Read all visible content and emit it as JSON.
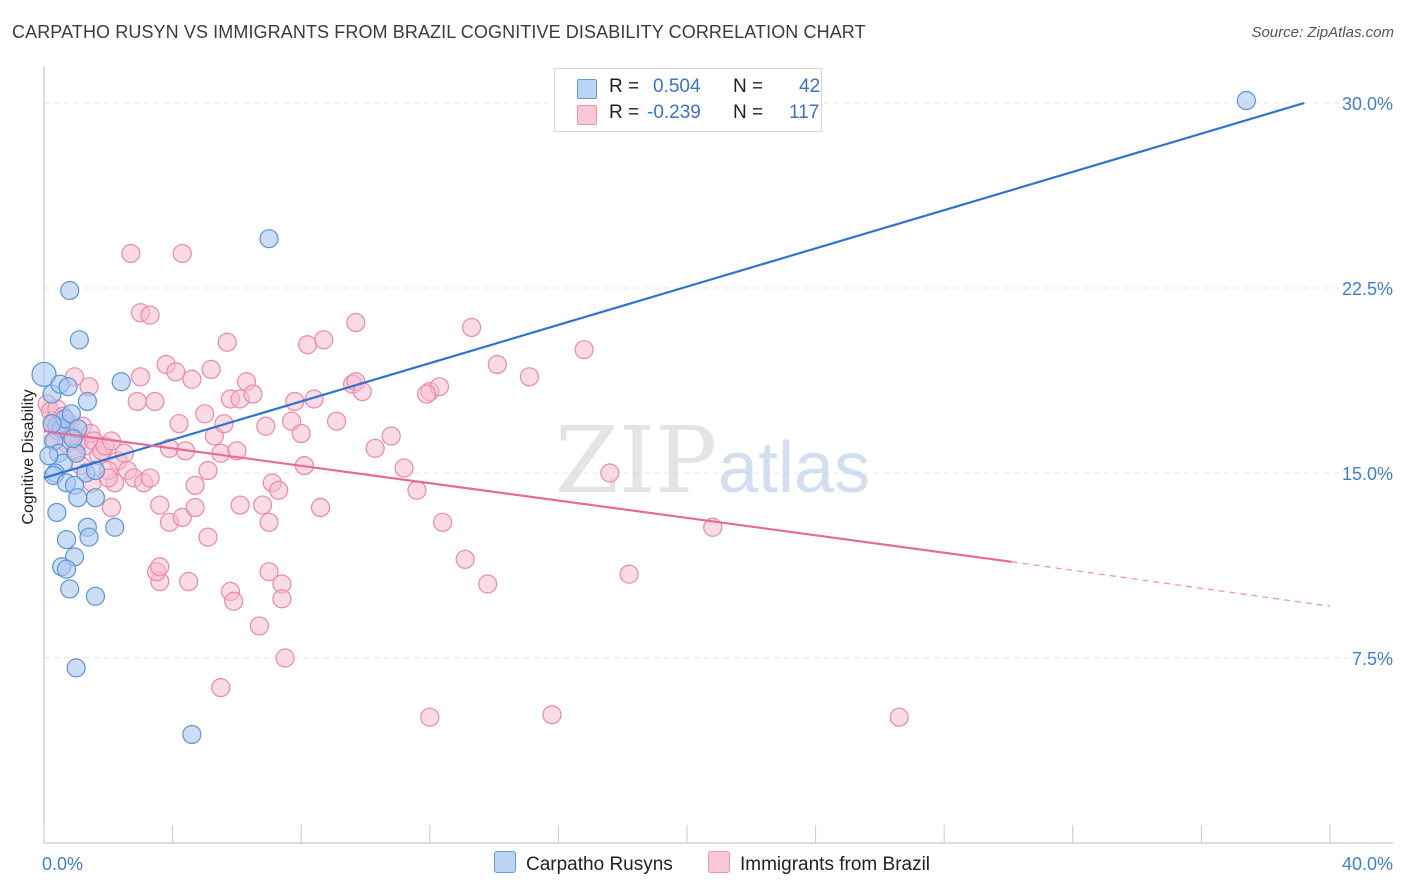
{
  "title": "CARPATHO RUSYN VS IMMIGRANTS FROM BRAZIL COGNITIVE DISABILITY CORRELATION CHART",
  "source": "Source: ZipAtlas.com",
  "watermark": {
    "zip": "ZIP",
    "atlas": "atlas"
  },
  "legend": {
    "r_label": "R =",
    "n_label": "N =",
    "rows": [
      {
        "r": "0.504",
        "n": "42"
      },
      {
        "r": "-0.239",
        "n": "117"
      }
    ]
  },
  "colors": {
    "blue_fill": "#a9c8f0",
    "blue_stroke": "#5e93d8",
    "blue_line": "#2f74d0",
    "pink_fill": "#f6bccd",
    "pink_stroke": "#e98aa7",
    "pink_line": "#e76b95",
    "tick_label": "#3f7fd0",
    "grid": "#e4e4e4"
  },
  "chart_data": {
    "type": "scatter",
    "title": "CARPATHO RUSYN VS IMMIGRANTS FROM BRAZIL COGNITIVE DISABILITY CORRELATION CHART",
    "xlabel": "",
    "ylabel": "Cognitive Disability",
    "xlim": [
      0,
      40
    ],
    "ylim": [
      0,
      31.5
    ],
    "x_tick_labels": [
      "0.0%",
      "40.0%"
    ],
    "y_ticks": [
      7.5,
      15.0,
      22.5,
      30.0
    ],
    "y_tick_labels": [
      "7.5%",
      "15.0%",
      "22.5%",
      "30.0%"
    ],
    "grid": "horizontal dashed",
    "legend_position": "top-center",
    "series": [
      {
        "name": "Carpatho Rusyns",
        "r": 0.504,
        "n": 42,
        "trend": {
          "x": [
            0.0,
            39.2
          ],
          "y": [
            14.8,
            30.0
          ]
        },
        "points": [
          [
            0.0,
            19.0
          ],
          [
            0.25,
            18.2
          ],
          [
            0.4,
            16.9
          ],
          [
            0.55,
            16.8
          ],
          [
            0.3,
            16.3
          ],
          [
            0.45,
            15.8
          ],
          [
            0.6,
            15.4
          ],
          [
            0.35,
            15.0
          ],
          [
            0.3,
            14.9
          ],
          [
            0.7,
            14.6
          ],
          [
            1.0,
            15.8
          ],
          [
            1.3,
            15.0
          ],
          [
            1.6,
            15.1
          ],
          [
            0.5,
            18.6
          ],
          [
            0.65,
            17.2
          ],
          [
            0.85,
            17.4
          ],
          [
            1.05,
            16.8
          ],
          [
            0.25,
            17.0
          ],
          [
            0.75,
            18.5
          ],
          [
            2.4,
            18.7
          ],
          [
            1.1,
            20.4
          ],
          [
            0.8,
            22.4
          ],
          [
            0.95,
            14.5
          ],
          [
            1.6,
            14.0
          ],
          [
            1.05,
            14.0
          ],
          [
            0.4,
            13.4
          ],
          [
            1.35,
            12.8
          ],
          [
            2.2,
            12.8
          ],
          [
            0.7,
            12.3
          ],
          [
            1.4,
            12.4
          ],
          [
            0.95,
            11.6
          ],
          [
            0.55,
            11.2
          ],
          [
            0.7,
            11.1
          ],
          [
            0.8,
            10.3
          ],
          [
            1.6,
            10.0
          ],
          [
            1.0,
            7.1
          ],
          [
            4.6,
            4.4
          ],
          [
            7.0,
            24.5
          ],
          [
            37.4,
            30.1
          ],
          [
            0.15,
            15.7
          ],
          [
            1.35,
            17.9
          ],
          [
            0.9,
            16.4
          ]
        ]
      },
      {
        "name": "Immigrants from Brazil",
        "r": -0.239,
        "n": 117,
        "trend": {
          "x": [
            0.0,
            30.1
          ],
          "y": [
            16.7,
            11.4
          ]
        },
        "trend_dashed": {
          "x": [
            30.1,
            40.0
          ],
          "y": [
            11.4,
            9.6
          ]
        },
        "points": [
          [
            0.1,
            17.8
          ],
          [
            0.2,
            17.5
          ],
          [
            0.3,
            17.1
          ],
          [
            0.4,
            17.6
          ],
          [
            0.5,
            16.9
          ],
          [
            0.6,
            17.3
          ],
          [
            0.35,
            16.3
          ],
          [
            0.45,
            16.7
          ],
          [
            0.7,
            16.2
          ],
          [
            0.8,
            17.0
          ],
          [
            0.9,
            16.5
          ],
          [
            1.0,
            15.9
          ],
          [
            1.1,
            16.3
          ],
          [
            1.2,
            16.9
          ],
          [
            1.3,
            16.1
          ],
          [
            1.45,
            16.6
          ],
          [
            1.55,
            16.3
          ],
          [
            1.7,
            15.7
          ],
          [
            1.8,
            15.9
          ],
          [
            1.9,
            16.1
          ],
          [
            2.1,
            16.3
          ],
          [
            2.3,
            15.5
          ],
          [
            2.5,
            15.8
          ],
          [
            2.6,
            15.1
          ],
          [
            2.8,
            14.8
          ],
          [
            3.1,
            14.6
          ],
          [
            3.3,
            14.8
          ],
          [
            2.2,
            14.6
          ],
          [
            1.5,
            14.6
          ],
          [
            1.15,
            15.3
          ],
          [
            0.95,
            18.9
          ],
          [
            1.4,
            18.5
          ],
          [
            2.1,
            13.6
          ],
          [
            2.0,
            15.1
          ],
          [
            2.9,
            17.9
          ],
          [
            3.0,
            18.9
          ],
          [
            3.45,
            17.9
          ],
          [
            3.8,
            19.4
          ],
          [
            4.1,
            19.1
          ],
          [
            3.9,
            16.0
          ],
          [
            4.2,
            17.0
          ],
          [
            4.4,
            15.9
          ],
          [
            4.6,
            18.8
          ],
          [
            4.7,
            14.5
          ],
          [
            5.0,
            17.4
          ],
          [
            5.2,
            19.2
          ],
          [
            5.1,
            15.1
          ],
          [
            5.3,
            16.5
          ],
          [
            5.5,
            15.8
          ],
          [
            5.6,
            17.0
          ],
          [
            5.8,
            18.0
          ],
          [
            5.7,
            20.3
          ],
          [
            6.1,
            18.0
          ],
          [
            6.3,
            18.7
          ],
          [
            6.5,
            18.2
          ],
          [
            6.9,
            16.9
          ],
          [
            6.0,
            15.9
          ],
          [
            6.8,
            13.7
          ],
          [
            7.0,
            13.0
          ],
          [
            7.1,
            14.6
          ],
          [
            7.3,
            14.3
          ],
          [
            7.7,
            17.1
          ],
          [
            7.8,
            17.9
          ],
          [
            8.0,
            16.6
          ],
          [
            8.1,
            15.3
          ],
          [
            8.4,
            18.0
          ],
          [
            8.6,
            13.6
          ],
          [
            8.2,
            20.2
          ],
          [
            8.7,
            20.4
          ],
          [
            9.1,
            17.1
          ],
          [
            9.6,
            18.6
          ],
          [
            9.7,
            18.7
          ],
          [
            9.9,
            18.3
          ],
          [
            10.3,
            16.0
          ],
          [
            10.8,
            16.5
          ],
          [
            11.2,
            15.2
          ],
          [
            11.6,
            14.3
          ],
          [
            12.0,
            18.3
          ],
          [
            12.3,
            18.5
          ],
          [
            11.9,
            18.2
          ],
          [
            12.4,
            13.0
          ],
          [
            13.1,
            11.5
          ],
          [
            13.8,
            10.5
          ],
          [
            13.3,
            20.9
          ],
          [
            14.1,
            19.4
          ],
          [
            15.1,
            18.9
          ],
          [
            16.8,
            20.0
          ],
          [
            17.6,
            15.0
          ],
          [
            18.2,
            10.9
          ],
          [
            20.8,
            12.8
          ],
          [
            26.6,
            5.1
          ],
          [
            12.0,
            5.1
          ],
          [
            15.8,
            5.2
          ],
          [
            4.3,
            23.9
          ],
          [
            2.7,
            23.9
          ],
          [
            3.0,
            21.5
          ],
          [
            3.3,
            21.4
          ],
          [
            9.7,
            21.1
          ],
          [
            5.8,
            10.2
          ],
          [
            7.4,
            10.5
          ],
          [
            5.5,
            6.3
          ],
          [
            5.9,
            9.8
          ],
          [
            6.7,
            8.8
          ],
          [
            7.5,
            7.5
          ],
          [
            7.4,
            9.9
          ],
          [
            4.5,
            10.6
          ],
          [
            3.6,
            10.6
          ],
          [
            3.5,
            11.0
          ],
          [
            3.6,
            11.2
          ],
          [
            3.9,
            13.0
          ],
          [
            4.3,
            13.2
          ],
          [
            4.7,
            13.6
          ],
          [
            3.6,
            13.7
          ],
          [
            5.1,
            12.4
          ],
          [
            6.1,
            13.7
          ],
          [
            7.0,
            11.0
          ],
          [
            2.0,
            14.8
          ]
        ]
      }
    ]
  },
  "bottom_legend": {
    "items": [
      "Carpatho Rusyns",
      "Immigrants from Brazil"
    ]
  }
}
